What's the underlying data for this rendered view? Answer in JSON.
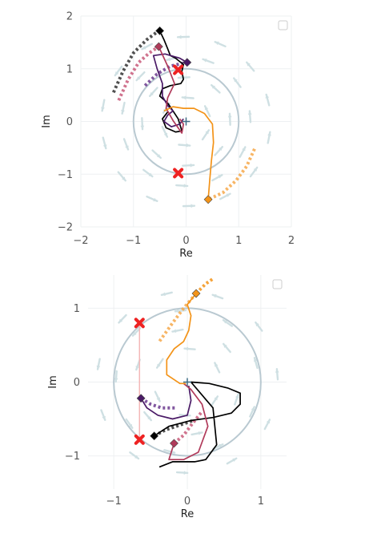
{
  "chart_data": [
    {
      "type": "line",
      "panel": "top",
      "xlabel": "Re",
      "ylabel": "Im",
      "xlim": [
        -2,
        2
      ],
      "ylim": [
        -2,
        2
      ],
      "xticks": [
        "−2",
        "−1",
        "0",
        "1",
        "2"
      ],
      "yticks": [
        "−2",
        "−1",
        "0",
        "1",
        "2"
      ],
      "grid": true,
      "unit_circle": true,
      "origin_marker": {
        "x": 0,
        "y": 0
      },
      "legend": "top-right (empty)",
      "poles": [
        {
          "x": -0.15,
          "y": 0.98
        },
        {
          "x": -0.15,
          "y": -0.98
        }
      ],
      "trajectories": [
        {
          "color": "#000000",
          "end": {
            "x": -0.5,
            "y": 1.72
          },
          "points": [
            [
              -0.5,
              1.72
            ],
            [
              -0.42,
              1.55
            ],
            [
              -0.35,
              1.38
            ],
            [
              -0.3,
              1.25
            ],
            [
              -0.2,
              1.2
            ],
            [
              -0.05,
              1.08
            ],
            [
              -0.08,
              0.95
            ],
            [
              -0.05,
              0.8
            ],
            [
              -0.1,
              0.72
            ],
            [
              -0.3,
              0.68
            ],
            [
              -0.45,
              0.62
            ],
            [
              -0.5,
              0.48
            ],
            [
              -0.35,
              0.35
            ],
            [
              -0.25,
              0.2
            ],
            [
              -0.15,
              0.05
            ],
            [
              -0.08,
              -0.18
            ],
            [
              -0.2,
              -0.2
            ],
            [
              -0.38,
              -0.12
            ],
            [
              -0.45,
              0.05
            ],
            [
              -0.35,
              0.18
            ]
          ]
        },
        {
          "color": "#4a1a66",
          "end": {
            "x": 0.02,
            "y": 1.12
          },
          "points": [
            [
              0.02,
              1.12
            ],
            [
              -0.12,
              1.2
            ],
            [
              -0.4,
              1.28
            ],
            [
              -0.62,
              1.25
            ],
            [
              -0.55,
              1.0
            ],
            [
              -0.45,
              0.72
            ],
            [
              -0.45,
              0.48
            ],
            [
              -0.35,
              0.3
            ],
            [
              -0.25,
              0.2
            ],
            [
              -0.35,
              0.12
            ],
            [
              -0.42,
              0.0
            ],
            [
              -0.28,
              -0.1
            ],
            [
              -0.12,
              -0.05
            ],
            [
              -0.05,
              0.05
            ]
          ]
        },
        {
          "color": "#b03a5a",
          "end": {
            "x": -0.52,
            "y": 1.42
          },
          "points": [
            [
              -0.52,
              1.42
            ],
            [
              -0.35,
              1.05
            ],
            [
              -0.22,
              0.72
            ],
            [
              -0.35,
              0.45
            ],
            [
              -0.38,
              0.25
            ],
            [
              -0.25,
              0.02
            ],
            [
              -0.08,
              -0.22
            ],
            [
              -0.05,
              -0.05
            ],
            [
              -0.12,
              0.05
            ]
          ]
        },
        {
          "color": "#f39318",
          "end": {
            "x": 0.42,
            "y": -1.48
          },
          "points": [
            [
              0.42,
              -1.48
            ],
            [
              0.45,
              -1.1
            ],
            [
              0.48,
              -0.75
            ],
            [
              0.52,
              -0.4
            ],
            [
              0.5,
              -0.05
            ],
            [
              0.35,
              0.15
            ],
            [
              0.15,
              0.25
            ],
            [
              -0.05,
              0.25
            ],
            [
              -0.25,
              0.28
            ],
            [
              -0.42,
              0.2
            ]
          ]
        }
      ],
      "history": [
        {
          "color": "#333333",
          "points": [
            [
              -1.38,
              0.55
            ],
            [
              -1.2,
              0.95
            ],
            [
              -1.0,
              1.3
            ],
            [
              -0.75,
              1.55
            ],
            [
              -0.52,
              1.72
            ]
          ]
        },
        {
          "color": "#c85a7a",
          "points": [
            [
              -1.28,
              0.4
            ],
            [
              -1.1,
              0.8
            ],
            [
              -0.9,
              1.12
            ],
            [
              -0.7,
              1.3
            ],
            [
              -0.52,
              1.42
            ]
          ]
        },
        {
          "color": "#6b3a8e",
          "points": [
            [
              -0.78,
              0.68
            ],
            [
              -0.55,
              0.9
            ],
            [
              -0.3,
              1.05
            ],
            [
              0.0,
              1.12
            ]
          ]
        },
        {
          "color": "#f6a84a",
          "points": [
            [
              1.3,
              -0.52
            ],
            [
              1.15,
              -0.85
            ],
            [
              0.95,
              -1.12
            ],
            [
              0.7,
              -1.35
            ],
            [
              0.42,
              -1.48
            ]
          ]
        }
      ]
    },
    {
      "type": "line",
      "panel": "bottom",
      "xlabel": "Re",
      "ylabel": "Im",
      "xlim": [
        -1.35,
        1.35
      ],
      "ylim": [
        -1.45,
        1.45
      ],
      "xticks": [
        "−1",
        "0",
        "1"
      ],
      "yticks": [
        "−1",
        "0",
        "1"
      ],
      "grid": true,
      "unit_circle": true,
      "origin_marker": {
        "x": 0,
        "y": 0
      },
      "legend": "top-right (empty)",
      "poles": [
        {
          "x": -0.65,
          "y": 0.8
        },
        {
          "x": -0.65,
          "y": -0.78
        }
      ],
      "trajectories": [
        {
          "color": "#000000",
          "end": {
            "x": -0.45,
            "y": -0.73
          },
          "points": [
            [
              -0.45,
              -0.73
            ],
            [
              -0.25,
              -0.6
            ],
            [
              0.05,
              -0.52
            ],
            [
              0.35,
              -0.48
            ],
            [
              0.6,
              -0.42
            ],
            [
              0.72,
              -0.3
            ],
            [
              0.72,
              -0.15
            ],
            [
              0.55,
              -0.08
            ],
            [
              0.3,
              -0.02
            ],
            [
              0.05,
              0.0
            ],
            [
              0.35,
              -0.35
            ],
            [
              0.4,
              -0.85
            ],
            [
              0.25,
              -1.05
            ],
            [
              0.1,
              -1.08
            ],
            [
              -0.2,
              -1.08
            ],
            [
              -0.38,
              -1.15
            ]
          ]
        },
        {
          "color": "#4a1a66",
          "end": {
            "x": -0.63,
            "y": -0.22
          },
          "points": [
            [
              -0.63,
              -0.22
            ],
            [
              -0.55,
              -0.35
            ],
            [
              -0.4,
              -0.45
            ],
            [
              -0.2,
              -0.5
            ],
            [
              0.0,
              -0.45
            ],
            [
              0.05,
              -0.25
            ],
            [
              0.02,
              -0.05
            ]
          ]
        },
        {
          "color": "#b03a5a",
          "end": {
            "x": -0.18,
            "y": -0.83
          },
          "points": [
            [
              -0.18,
              -0.83
            ],
            [
              -0.25,
              -1.05
            ],
            [
              -0.05,
              -1.05
            ],
            [
              0.15,
              -0.95
            ],
            [
              0.28,
              -0.6
            ],
            [
              0.2,
              -0.3
            ],
            [
              0.05,
              -0.1
            ],
            [
              -0.05,
              -0.02
            ]
          ]
        },
        {
          "color": "#f39318",
          "end": {
            "x": 0.12,
            "y": 1.2
          },
          "points": [
            [
              0.12,
              1.2
            ],
            [
              0.0,
              1.05
            ],
            [
              0.05,
              0.9
            ],
            [
              0.02,
              0.7
            ],
            [
              -0.05,
              0.55
            ],
            [
              -0.18,
              0.45
            ],
            [
              -0.28,
              0.3
            ],
            [
              -0.28,
              0.1
            ],
            [
              -0.1,
              -0.02
            ],
            [
              -0.02,
              -0.02
            ]
          ]
        }
      ],
      "history": [
        {
          "color": "#333333",
          "points": [
            [
              -0.45,
              -0.73
            ],
            [
              -0.3,
              -0.65
            ],
            [
              -0.15,
              -0.6
            ],
            [
              0.08,
              -0.52
            ]
          ]
        },
        {
          "color": "#c85a7a",
          "points": [
            [
              -0.18,
              -0.83
            ],
            [
              -0.05,
              -0.72
            ],
            [
              0.08,
              -0.55
            ],
            [
              0.2,
              -0.4
            ]
          ]
        },
        {
          "color": "#6b3a8e",
          "points": [
            [
              -0.63,
              -0.22
            ],
            [
              -0.5,
              -0.3
            ],
            [
              -0.35,
              -0.35
            ],
            [
              -0.15,
              -0.35
            ]
          ]
        },
        {
          "color": "#f6a84a",
          "points": [
            [
              0.12,
              1.2
            ],
            [
              -0.05,
              1.0
            ],
            [
              -0.2,
              0.8
            ],
            [
              -0.38,
              0.55
            ]
          ]
        },
        {
          "color": "#f39318",
          "points": [
            [
              0.12,
              1.2
            ],
            [
              0.25,
              1.33
            ],
            [
              0.35,
              1.4
            ]
          ]
        }
      ]
    }
  ]
}
